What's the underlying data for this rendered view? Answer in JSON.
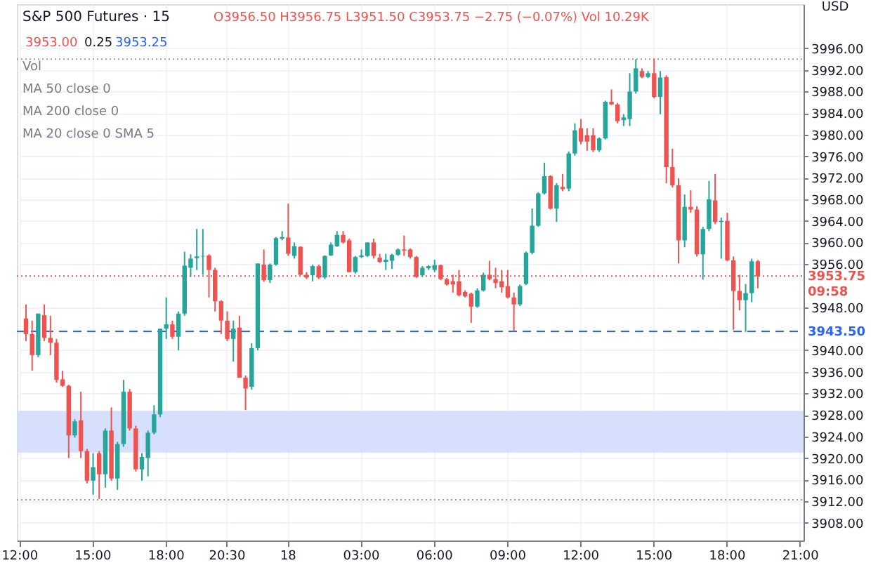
{
  "chart_data": {
    "type": "candlestick",
    "title": "S&P 500 Futures · 15",
    "subtitle": "O3956.50 H3956.75 L3951.50 C3953.75 −2.75 (−0.07%) Vol 10.29K",
    "ylabel": "USD",
    "annotations": [
      "3953.00",
      "0.25",
      "3953.25",
      "Vol",
      "MA 50 close 0",
      "MA 200 close 0",
      "MA 20 close 0 SMA 5"
    ],
    "categories": [
      "12:00",
      null,
      null,
      null,
      null,
      null,
      null,
      null,
      null,
      null,
      null,
      null,
      "15:00",
      null,
      null,
      null,
      null,
      null,
      null,
      null,
      null,
      null,
      null,
      null,
      "18:00",
      null,
      null,
      null,
      null,
      null,
      null,
      null,
      null,
      null,
      "20:30",
      null,
      null,
      null,
      null,
      null,
      null,
      null,
      null,
      null,
      "18",
      null,
      null,
      null,
      null,
      null,
      null,
      null,
      null,
      null,
      null,
      null,
      "03:00",
      null,
      null,
      null,
      null,
      null,
      null,
      null,
      null,
      null,
      null,
      null,
      "06:00",
      null,
      null,
      null,
      null,
      null,
      null,
      null,
      null,
      null,
      null,
      null,
      "09:00",
      null,
      null,
      null,
      null,
      null,
      null,
      null,
      null,
      null,
      null,
      null,
      "12:00",
      null,
      null,
      null,
      null,
      null,
      null,
      null,
      null,
      null,
      null,
      null,
      "15:00",
      null,
      null,
      null,
      null,
      null,
      null,
      null,
      null,
      null,
      null,
      null,
      "18:00",
      null,
      null,
      null,
      null,
      null,
      null,
      null,
      null,
      null,
      null,
      null,
      "21:00"
    ],
    "ohlc": [
      null,
      [
        3945.9,
        3948.5,
        3941.7,
        3943.0
      ],
      [
        3943.0,
        3945.5,
        3936.2,
        3939.1
      ],
      [
        3939.1,
        3946.8,
        3938.7,
        3946.8
      ],
      [
        3946.5,
        3948.5,
        3941.7,
        3942.3
      ],
      [
        3942.3,
        3946.4,
        3939.1,
        3941.4
      ],
      [
        3941.4,
        3942.1,
        3934.0,
        3934.5
      ],
      [
        3934.6,
        3936.2,
        3933.2,
        3933.4
      ],
      [
        3933.4,
        3933.6,
        3920.0,
        3924.2
      ],
      [
        3924.2,
        3927.2,
        3923.8,
        3926.8
      ],
      [
        3927.0,
        3932.3,
        3920.0,
        3921.3
      ],
      [
        3921.3,
        3921.7,
        3915.3,
        3915.8
      ],
      [
        3915.8,
        3920.9,
        3913.2,
        3918.3
      ],
      [
        3920.9,
        3921.3,
        3912.4,
        3917.0
      ],
      [
        3917.0,
        3925.5,
        3914.5,
        3925.1
      ],
      [
        3925.1,
        3929.4,
        3915.8,
        3916.2
      ],
      [
        3916.2,
        3923.0,
        3914.1,
        3922.6
      ],
      [
        3922.6,
        3934.5,
        3922.1,
        3932.3
      ],
      [
        3932.3,
        3932.8,
        3925.1,
        3925.5
      ],
      [
        3925.5,
        3926.0,
        3917.5,
        3917.9
      ],
      [
        3917.9,
        3920.9,
        3915.8,
        3920.2
      ],
      [
        3920.0,
        3925.1,
        3916.6,
        3924.7
      ],
      [
        3924.7,
        3929.8,
        3924.4,
        3928.1
      ],
      [
        3928.1,
        3944.0,
        3927.6,
        3944.0
      ],
      [
        3944.0,
        3949.8,
        3942.1,
        3944.8
      ],
      [
        3944.8,
        3945.5,
        3942.1,
        3942.5
      ],
      [
        3942.5,
        3947.2,
        3940.0,
        3946.8
      ],
      [
        3946.8,
        3958.3,
        3946.4,
        3955.7
      ],
      [
        3955.3,
        3957.8,
        3953.6,
        3957.0
      ],
      [
        3957.1,
        3962.5,
        3954.9,
        3957.4
      ],
      [
        3957.4,
        3962.5,
        3954.0,
        3957.5
      ],
      [
        3957.6,
        3957.8,
        3949.8,
        3954.9
      ],
      [
        3954.9,
        3955.3,
        3947.2,
        3949.1
      ],
      [
        3949.1,
        3949.3,
        3943.0,
        3945.5
      ],
      [
        3945.5,
        3947.2,
        3941.7,
        3942.1
      ],
      [
        3942.1,
        3945.5,
        3937.9,
        3944.0
      ],
      [
        3944.2,
        3946.4,
        3934.9,
        3934.9
      ],
      [
        3934.9,
        3935.3,
        3928.9,
        3932.9
      ],
      [
        3933.2,
        3941.3,
        3932.7,
        3940.4
      ],
      [
        3940.4,
        3956.1,
        3940.0,
        3956.1
      ],
      [
        3955.9,
        3958.7,
        3952.7,
        3953.0
      ],
      [
        3953.0,
        3956.1,
        3952.5,
        3955.9
      ],
      [
        3955.9,
        3961.0,
        3955.7,
        3960.8
      ],
      [
        3960.7,
        3962.1,
        3960.4,
        3961.0
      ],
      [
        3960.9,
        3967.2,
        3957.5,
        3957.9
      ],
      [
        3957.5,
        3960.0,
        3957.0,
        3959.3
      ],
      [
        3959.2,
        3959.3,
        3953.9,
        3954.0
      ],
      [
        3954.0,
        3954.5,
        3953.2,
        3953.5
      ],
      [
        3953.9,
        3955.9,
        3952.8,
        3955.6
      ],
      [
        3955.6,
        3955.9,
        3953.2,
        3953.5
      ],
      [
        3953.5,
        3957.6,
        3953.2,
        3957.5
      ],
      [
        3957.6,
        3960.0,
        3957.5,
        3959.6
      ],
      [
        3959.3,
        3962.1,
        3959.2,
        3961.4
      ],
      [
        3961.4,
        3962.1,
        3959.8,
        3960.0
      ],
      [
        3960.4,
        3960.7,
        3954.5,
        3954.5
      ],
      [
        3954.5,
        3957.5,
        3954.2,
        3957.3
      ],
      [
        3957.3,
        3958.7,
        3957.1,
        3957.6
      ],
      [
        3957.5,
        3960.0,
        3957.3,
        3960.0
      ],
      [
        3960.0,
        3960.7,
        3957.0,
        3957.5
      ],
      [
        3957.2,
        3957.9,
        3956.2,
        3956.4
      ],
      [
        3956.4,
        3957.9,
        3954.9,
        3956.8
      ],
      [
        3956.6,
        3957.9,
        3955.1,
        3957.7
      ],
      [
        3957.7,
        3958.9,
        3957.5,
        3958.7
      ],
      [
        3958.7,
        3961.3,
        3957.5,
        3958.5
      ],
      [
        3958.7,
        3958.9,
        3957.0,
        3957.3
      ],
      [
        3957.3,
        3957.5,
        3953.4,
        3953.6
      ],
      [
        3953.9,
        3955.6,
        3953.6,
        3955.3
      ],
      [
        3955.2,
        3955.8,
        3954.9,
        3955.6
      ],
      [
        3954.9,
        3956.8,
        3954.5,
        3955.8
      ],
      [
        3955.8,
        3955.9,
        3953.0,
        3953.2
      ],
      [
        3953.2,
        3953.4,
        3952.0,
        3952.2
      ],
      [
        3952.8,
        3954.0,
        3950.7,
        3952.2
      ],
      [
        3952.8,
        3954.9,
        3950.0,
        3950.2
      ],
      [
        3950.8,
        3951.1,
        3949.8,
        3950.0
      ],
      [
        3950.5,
        3950.7,
        3945.1,
        3948.1
      ],
      [
        3948.1,
        3951.5,
        3947.9,
        3951.1
      ],
      [
        3951.1,
        3954.4,
        3950.9,
        3954.0
      ],
      [
        3954.0,
        3956.6,
        3953.0,
        3953.2
      ],
      [
        3953.2,
        3955.3,
        3951.5,
        3952.5
      ],
      [
        3952.8,
        3954.9,
        3950.7,
        3951.7
      ],
      [
        3951.9,
        3954.9,
        3949.6,
        3949.8
      ],
      [
        3949.8,
        3950.7,
        3943.5,
        3948.5
      ],
      [
        3948.5,
        3952.2,
        3948.2,
        3951.9
      ],
      [
        3952.3,
        3958.3,
        3952.1,
        3958.1
      ],
      [
        3958.1,
        3966.3,
        3957.8,
        3963.1
      ],
      [
        3963.1,
        3969.3,
        3962.9,
        3969.1
      ],
      [
        3969.1,
        3974.8,
        3968.9,
        3972.3
      ],
      [
        3972.3,
        3972.5,
        3966.1,
        3966.3
      ],
      [
        3966.3,
        3971.0,
        3963.8,
        3970.6
      ],
      [
        3970.3,
        3972.7,
        3969.5,
        3969.9
      ],
      [
        3970.0,
        3976.9,
        3969.5,
        3976.5
      ],
      [
        3976.5,
        3982.1,
        3976.1,
        3980.8
      ],
      [
        3981.2,
        3982.9,
        3978.2,
        3978.7
      ],
      [
        3979.9,
        3981.2,
        3977.0,
        3978.7
      ],
      [
        3979.9,
        3981.2,
        3976.8,
        3977.1
      ],
      [
        3977.1,
        3979.5,
        3976.8,
        3979.3
      ],
      [
        3979.3,
        3986.3,
        3979.1,
        3986.1
      ],
      [
        3986.1,
        3988.4,
        3985.5,
        3985.6
      ],
      [
        3985.6,
        3985.9,
        3982.1,
        3982.5
      ],
      [
        3982.7,
        3983.8,
        3981.6,
        3983.2
      ],
      [
        3982.9,
        3991.4,
        3981.6,
        3988.0
      ],
      [
        3988.0,
        3994.0,
        3987.6,
        3992.3
      ],
      [
        3991.8,
        3992.3,
        3990.5,
        3990.7
      ],
      [
        3990.7,
        3991.8,
        3990.5,
        3991.4
      ],
      [
        3991.4,
        3994.1,
        3986.7,
        3987.0
      ],
      [
        3987.0,
        3991.8,
        3983.8,
        3990.6
      ],
      [
        3990.7,
        3991.0,
        3971.0,
        3974.0
      ],
      [
        3974.0,
        3977.4,
        3970.2,
        3970.6
      ],
      [
        3970.6,
        3971.9,
        3956.1,
        3960.4
      ],
      [
        3960.4,
        3968.9,
        3959.1,
        3966.6
      ],
      [
        3966.6,
        3969.7,
        3965.5,
        3966.1
      ],
      [
        3966.1,
        3966.7,
        3957.4,
        3957.8
      ],
      [
        3957.8,
        3962.9,
        3953.1,
        3962.5
      ],
      [
        3962.5,
        3971.4,
        3962.1,
        3968.0
      ],
      [
        3967.8,
        3972.7,
        3963.4,
        3963.8
      ],
      [
        3963.8,
        3964.6,
        3957.0,
        3964.0
      ],
      [
        3964.0,
        3965.5,
        3956.5,
        3956.7
      ],
      [
        3956.7,
        3957.4,
        3943.8,
        3951.0
      ],
      [
        3951.0,
        3954.0,
        3947.4,
        3949.3
      ],
      [
        3949.3,
        3952.3,
        3943.4,
        3950.6
      ],
      [
        3950.6,
        3957.0,
        3948.9,
        3956.5
      ],
      [
        3956.5,
        3956.75,
        3951.5,
        3953.75
      ],
      null,
      null,
      null,
      null,
      null,
      null,
      null
    ],
    "colors": [
      null,
      "#ef5350",
      "#ef5350",
      "#26a69a",
      "#ef5350",
      "#ef5350",
      "#ef5350",
      "#ef5350",
      "#ef5350",
      "#26a69a",
      "#ef5350",
      "#ef5350",
      "#26a69a",
      "#ef5350",
      "#26a69a",
      "#ef5350",
      "#26a69a",
      "#26a69a",
      "#ef5350",
      "#ef5350",
      "#26a69a",
      "#26a69a",
      "#26a69a",
      "#26a69a",
      "#26a69a",
      "#ef5350",
      "#26a69a",
      "#26a69a",
      "#26a69a",
      "#26a69a",
      "#26a69a",
      "#ef5350",
      "#ef5350",
      "#ef5350",
      "#ef5350",
      "#26a69a",
      "#ef5350",
      "#ef5350",
      "#26a69a",
      "#26a69a",
      "#ef5350",
      "#26a69a",
      "#26a69a",
      "#26a69a",
      "#ef5350",
      "#26a69a",
      "#ef5350",
      "#ef5350",
      "#26a69a",
      "#ef5350",
      "#26a69a",
      "#26a69a",
      "#26a69a",
      "#ef5350",
      "#ef5350",
      "#26a69a",
      "#26a69a",
      "#26a69a",
      "#ef5350",
      "#ef5350",
      "#26a69a",
      "#26a69a",
      "#26a69a",
      "#ef5350",
      "#ef5350",
      "#ef5350",
      "#26a69a",
      "#26a69a",
      "#26a69a",
      "#ef5350",
      "#ef5350",
      "#ef5350",
      "#ef5350",
      "#ef5350",
      "#ef5350",
      "#26a69a",
      "#26a69a",
      "#ef5350",
      "#ef5350",
      "#ef5350",
      "#ef5350",
      "#ef5350",
      "#26a69a",
      "#26a69a",
      "#26a69a",
      "#26a69a",
      "#26a69a",
      "#ef5350",
      "#26a69a",
      "#ef5350",
      "#26a69a",
      "#26a69a",
      "#ef5350",
      "#ef5350",
      "#ef5350",
      "#26a69a",
      "#26a69a",
      "#ef5350",
      "#ef5350",
      "#26a69a",
      "#26a69a",
      "#26a69a",
      "#ef5350",
      "#26a69a",
      "#ef5350",
      "#26a69a",
      "#ef5350",
      "#ef5350",
      "#ef5350",
      "#26a69a",
      "#ef5350",
      "#ef5350",
      "#26a69a",
      "#26a69a",
      "#ef5350",
      "#26a69a",
      "#ef5350",
      "#ef5350",
      "#ef5350",
      "#26a69a",
      "#26a69a",
      "#ef5350",
      null,
      null,
      null,
      null,
      null,
      null,
      null
    ],
    "ylim": [
      3904.7,
      4004.2
    ],
    "yticks": [
      {
        "value": 3908,
        "label": "3908.00"
      },
      {
        "value": 3912,
        "label": "3912.00"
      },
      {
        "value": 3916,
        "label": "3916.00"
      },
      {
        "value": 3920,
        "label": "3920.00"
      },
      {
        "value": 3924,
        "label": "3924.00"
      },
      {
        "value": 3928,
        "label": "3928.00"
      },
      {
        "value": 3932,
        "label": "3932.00"
      },
      {
        "value": 3936,
        "label": "3936.00"
      },
      {
        "value": 3940,
        "label": "3940.00"
      },
      {
        "value": 3948,
        "label": "3948.00"
      },
      {
        "value": 3956,
        "label": "3956.00"
      },
      {
        "value": 3960,
        "label": "3960.00"
      },
      {
        "value": 3964,
        "label": "3964.00"
      },
      {
        "value": 3968,
        "label": "3968.00"
      },
      {
        "value": 3972,
        "label": "3972.00"
      },
      {
        "value": 3976,
        "label": "3976.00"
      },
      {
        "value": 3980,
        "label": "3980.00"
      },
      {
        "value": 3984,
        "label": "3984.00"
      },
      {
        "value": 3988,
        "label": "3988.00"
      },
      {
        "value": 3992,
        "label": "3992.00"
      },
      {
        "value": 3996,
        "label": "3996.00"
      }
    ],
    "bands": [
      {
        "axis": "y",
        "from": 3921,
        "to": 3928.75,
        "color": "#d1dcfb"
      }
    ],
    "ref_lines": [
      {
        "axis": "y",
        "value": 3943.5,
        "label": "3943.50",
        "color": "#2962ff",
        "line_style": "dashed"
      },
      {
        "axis": "y",
        "value": 3953.75,
        "label": "3953.75\n09:58",
        "color": "#ef5350",
        "line_style": "dotted"
      },
      {
        "axis": "y",
        "value": 3994,
        "color": "#9e9e9e",
        "line_style": "dotted"
      },
      {
        "axis": "y",
        "value": 3912.25,
        "color": "#9e9e9e",
        "line_style": "dotted"
      }
    ],
    "grid": true
  }
}
